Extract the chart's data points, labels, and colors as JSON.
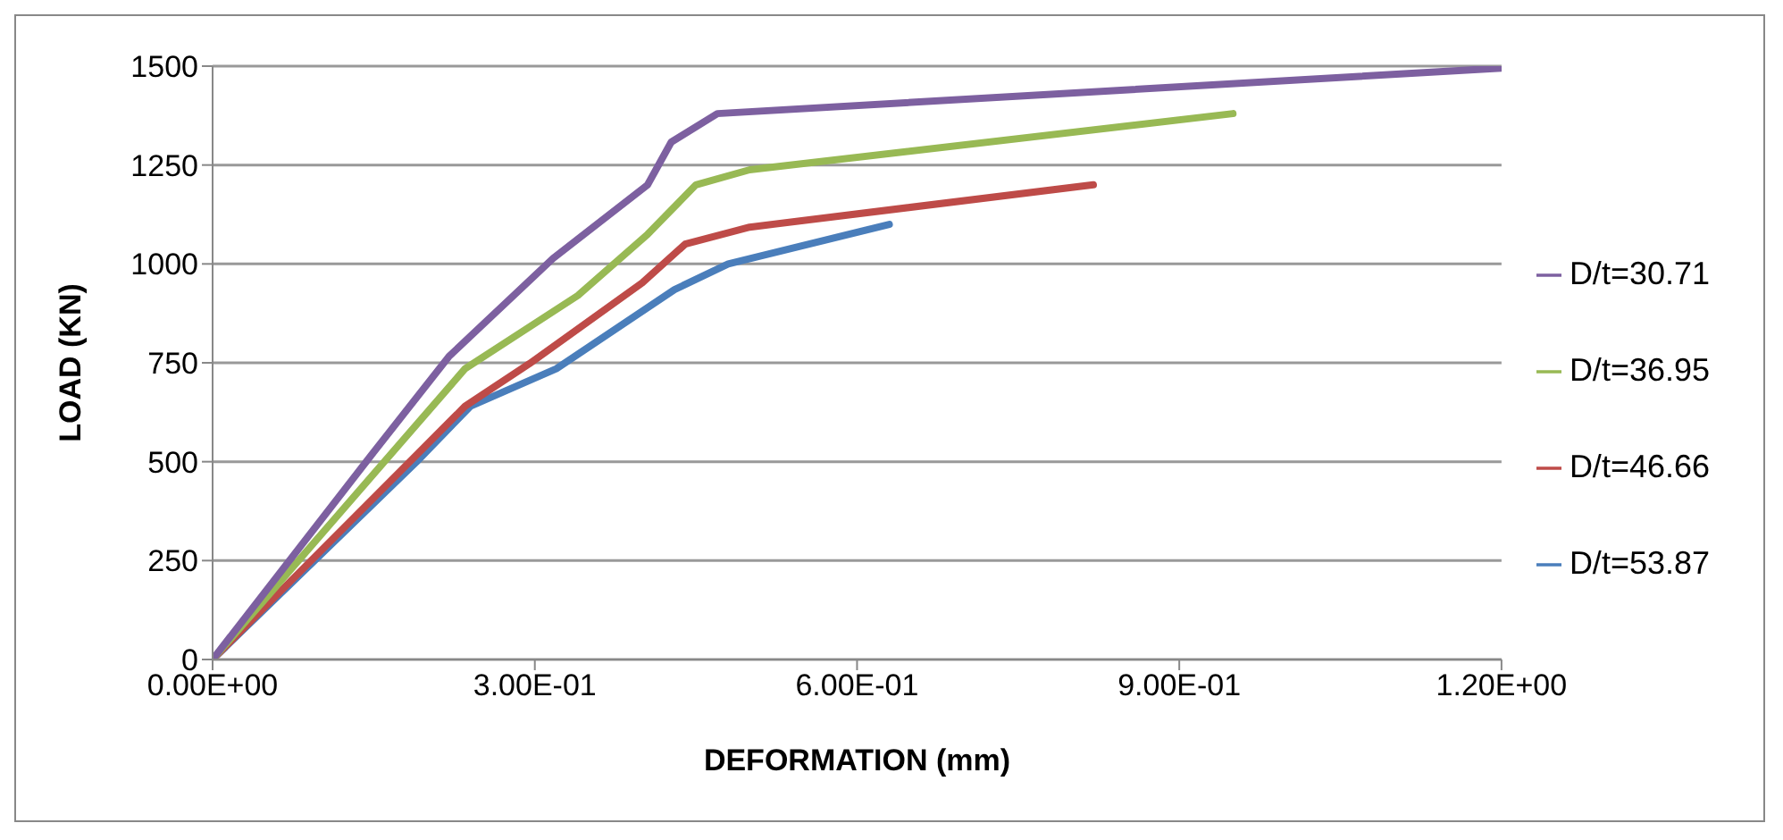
{
  "chart_data": {
    "type": "line",
    "xlabel": "DEFORMATION (mm)",
    "ylabel": "LOAD (KN)",
    "xlim": [
      0,
      1.2
    ],
    "ylim": [
      0,
      1500
    ],
    "xticks": [
      {
        "value": 0,
        "label": "0.00E+00"
      },
      {
        "value": 0.3,
        "label": "3.00E-01"
      },
      {
        "value": 0.6,
        "label": "6.00E-01"
      },
      {
        "value": 0.9,
        "label": "9.00E-01"
      },
      {
        "value": 1.2,
        "label": "1.20E+00"
      }
    ],
    "yticks": [
      0,
      250,
      500,
      750,
      1000,
      1250,
      1500
    ],
    "grid": "y",
    "legend": "right",
    "marker": "none",
    "line_style": "solid",
    "series": [
      {
        "name": "D/t=53.87",
        "color": "#4a7ebb",
        "x": [
          0,
          0.19,
          0.24,
          0.32,
          0.43,
          0.48,
          0.63
        ],
        "values": [
          0,
          500,
          640,
          735,
          935,
          1000,
          1100
        ]
      },
      {
        "name": "D/t=46.66",
        "color": "#be4b48",
        "x": [
          0,
          0.235,
          0.295,
          0.4,
          0.44,
          0.5,
          0.82
        ],
        "values": [
          0,
          640,
          748,
          952,
          1050,
          1093,
          1200
        ]
      },
      {
        "name": "D/t=36.95",
        "color": "#98b954",
        "x": [
          0,
          0.235,
          0.34,
          0.405,
          0.45,
          0.5,
          0.95
        ],
        "values": [
          0,
          735,
          920,
          1075,
          1200,
          1238,
          1380
        ]
      },
      {
        "name": "D/t=30.71",
        "color": "#7d60a0",
        "x": [
          0,
          0.147,
          0.22,
          0.317,
          0.405,
          0.427,
          0.47,
          1.2
        ],
        "values": [
          0,
          514,
          766,
          1014,
          1200,
          1308,
          1380,
          1495
        ]
      }
    ]
  }
}
